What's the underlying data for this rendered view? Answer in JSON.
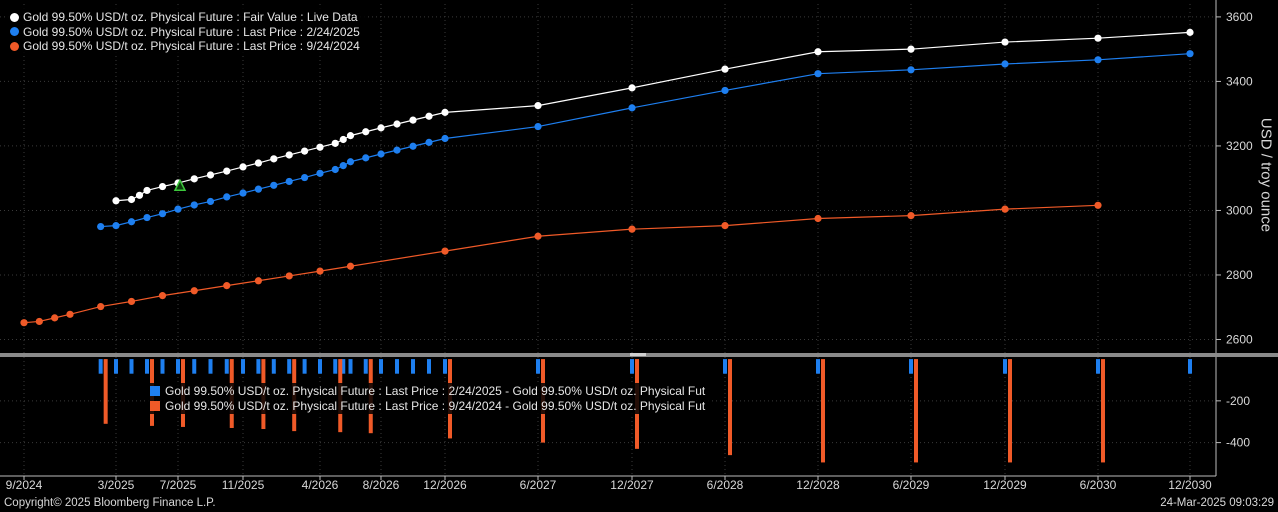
{
  "chart_data": {
    "type": "line",
    "x_labels": [
      "9/2024",
      "3/2025",
      "7/2025",
      "11/2025",
      "4/2026",
      "8/2026",
      "12/2026",
      "6/2027",
      "12/2027",
      "6/2028",
      "12/2028",
      "6/2029",
      "12/2029",
      "6/2030",
      "12/2030"
    ],
    "y_ticks_upper": [
      "2600",
      "2800",
      "3000",
      "3200",
      "3400",
      "3600"
    ],
    "y_ticks_lower": [
      "-200",
      "-400"
    ],
    "ylabel": "USD / troy ounce",
    "upper_ylim": [
      2555,
      3640
    ],
    "lower_ylim": [
      -560,
      10
    ],
    "legend_position": "top-left",
    "series": [
      {
        "name": "Gold 99.50% USD/t oz. Physical Future : Fair Value : Live Data",
        "color": "#ffffff",
        "points": [
          [
            "3/2025",
            3030
          ],
          [
            "4/2025",
            3034
          ],
          [
            "4/2025",
            3047
          ],
          [
            "5/2025",
            3062
          ],
          [
            "6/2025",
            3074
          ],
          [
            "7/2025",
            3085
          ],
          [
            "8/2025",
            3098
          ],
          [
            "9/2025",
            3110
          ],
          [
            "10/2025",
            3122
          ],
          [
            "11/2025",
            3135
          ],
          [
            "12/2025",
            3147
          ],
          [
            "1/2026",
            3160
          ],
          [
            "2/2026",
            3172
          ],
          [
            "3/2026",
            3184
          ],
          [
            "4/2026",
            3196
          ],
          [
            "5/2026",
            3208
          ],
          [
            "5/2026",
            3220
          ],
          [
            "6/2026",
            3232
          ],
          [
            "7/2026",
            3244
          ],
          [
            "8/2026",
            3256
          ],
          [
            "9/2026",
            3268
          ],
          [
            "10/2026",
            3280
          ],
          [
            "11/2026",
            3292
          ],
          [
            "12/2026",
            3304
          ],
          [
            "6/2027",
            3325
          ],
          [
            "12/2027",
            3380
          ],
          [
            "6/2028",
            3438
          ],
          [
            "12/2028",
            3492
          ],
          [
            "6/2029",
            3500
          ],
          [
            "12/2029",
            3522
          ],
          [
            "6/2030",
            3534
          ],
          [
            "12/2030",
            3552
          ]
        ]
      },
      {
        "name": "Gold 99.50% USD/t oz. Physical Future : Last Price : 2/24/2025",
        "color": "#1e7ff0",
        "points": [
          [
            "2/2025",
            2950
          ],
          [
            "3/2025",
            2953
          ],
          [
            "4/2025",
            2965
          ],
          [
            "5/2025",
            2978
          ],
          [
            "6/2025",
            2990
          ],
          [
            "7/2025",
            3004
          ],
          [
            "8/2025",
            3017
          ],
          [
            "9/2025",
            3028
          ],
          [
            "10/2025",
            3042
          ],
          [
            "11/2025",
            3054
          ],
          [
            "12/2025",
            3066
          ],
          [
            "1/2026",
            3078
          ],
          [
            "2/2026",
            3090
          ],
          [
            "3/2026",
            3102
          ],
          [
            "4/2026",
            3115
          ],
          [
            "5/2026",
            3127
          ],
          [
            "5/2026",
            3139
          ],
          [
            "6/2026",
            3151
          ],
          [
            "7/2026",
            3163
          ],
          [
            "8/2026",
            3175
          ],
          [
            "9/2026",
            3187
          ],
          [
            "10/2026",
            3199
          ],
          [
            "11/2026",
            3211
          ],
          [
            "12/2026",
            3223
          ],
          [
            "6/2027",
            3260
          ],
          [
            "12/2027",
            3318
          ],
          [
            "6/2028",
            3372
          ],
          [
            "12/2028",
            3424
          ],
          [
            "6/2029",
            3436
          ],
          [
            "12/2029",
            3454
          ],
          [
            "6/2030",
            3467
          ],
          [
            "12/2030",
            3486
          ]
        ]
      },
      {
        "name": "Gold 99.50% USD/t oz. Physical Future : Last Price : 9/24/2024",
        "color": "#f05a28",
        "points": [
          [
            "9/2024",
            2652
          ],
          [
            "10/2024",
            2656
          ],
          [
            "11/2024",
            2667
          ],
          [
            "12/2024",
            2678
          ],
          [
            "2/2025",
            2702
          ],
          [
            "4/2025",
            2718
          ],
          [
            "6/2025",
            2736
          ],
          [
            "8/2025",
            2751
          ],
          [
            "10/2025",
            2767
          ],
          [
            "12/2025",
            2782
          ],
          [
            "2/2026",
            2797
          ],
          [
            "4/2026",
            2812
          ],
          [
            "6/2026",
            2827
          ],
          [
            "12/2026",
            2874
          ],
          [
            "6/2027",
            2920
          ],
          [
            "12/2027",
            2942
          ],
          [
            "6/2028",
            2953
          ],
          [
            "12/2028",
            2975
          ],
          [
            "6/2029",
            2984
          ],
          [
            "12/2029",
            3004
          ],
          [
            "6/2030",
            3016
          ]
        ]
      }
    ],
    "difference_series": [
      {
        "name": "Gold 99.50% USD/t oz. Physical Future : Last Price : 2/24/2025 - Gold 99.50% USD/t oz. Physical Fut",
        "color": "#1e7ff0",
        "values": [
          -70,
          -70,
          -70,
          -70,
          -70,
          -70,
          -70,
          -70,
          -70,
          -70,
          -70,
          -70,
          -70,
          -70,
          -70,
          -70,
          -70,
          -70,
          -70,
          -70,
          -70,
          -70,
          -70,
          -70,
          -70,
          -70,
          -70,
          -70,
          -70,
          -70,
          -70,
          -70
        ]
      },
      {
        "name": "Gold 99.50% USD/t oz. Physical Future : Last Price : 9/24/2024 - Gold 99.50% USD/t oz. Physical Fut",
        "color": "#f05a28",
        "values": [
          -310,
          -320,
          -325,
          -330,
          -335,
          -345,
          -350,
          -355,
          -380,
          -400,
          -430,
          -460,
          -495,
          -495,
          -495,
          -495
        ]
      }
    ],
    "live_marker": {
      "date": "7/2025",
      "value": 3075,
      "color": "#3cc83c"
    }
  },
  "footer": {
    "copyright": "Copyright© 2025 Bloomberg Finance L.P.",
    "timestamp": "24-Mar-2025 09:03:29"
  }
}
